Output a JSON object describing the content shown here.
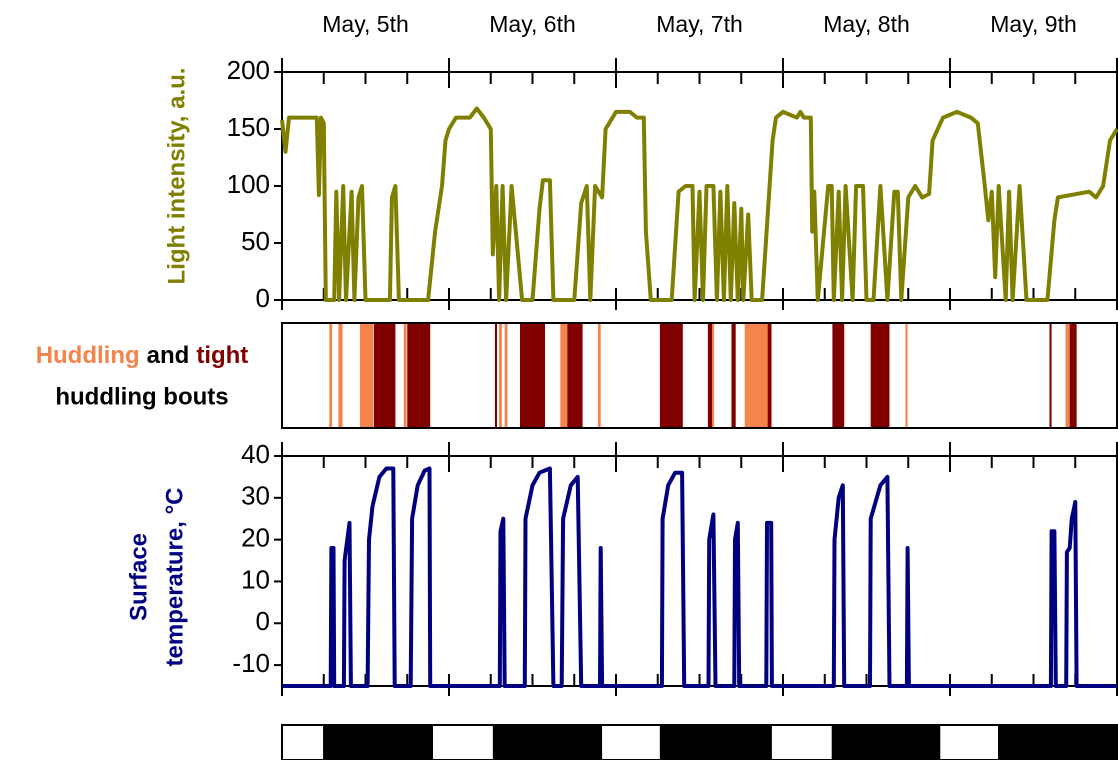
{
  "chart_data": [
    {
      "type": "line",
      "ylabel": "Light intensity, a.u.",
      "categories": [
        "May, 5th",
        "May, 6th",
        "May, 7th",
        "May, 8th",
        "May, 9th"
      ],
      "xlim": [
        0,
        120
      ],
      "xticks": [
        0,
        6,
        12,
        18,
        24,
        30,
        36,
        42,
        48,
        54,
        60,
        66,
        72,
        78,
        84,
        90,
        96,
        102,
        108,
        114,
        120
      ],
      "ylim": [
        0,
        200
      ],
      "yticks": [
        0,
        50,
        100,
        150,
        200
      ],
      "x": [
        0,
        0.5,
        1,
        5,
        5.3,
        5.6,
        6,
        6.3,
        7.5,
        7.8,
        8.2,
        8.8,
        9.2,
        10,
        10.4,
        11,
        11.5,
        12,
        15.5,
        15.8,
        16.3,
        16.8,
        21,
        22,
        23,
        23.5,
        24,
        25,
        27,
        28,
        29,
        30,
        30.3,
        30.8,
        31.2,
        31.7,
        32.2,
        33,
        34.5,
        36,
        37,
        37.5,
        38.5,
        39,
        42,
        43,
        43.8,
        44.3,
        45,
        46,
        46.5,
        48,
        50,
        51,
        52,
        52.3,
        53,
        56,
        57,
        58,
        59,
        59.3,
        60,
        60.5,
        61,
        62,
        62.5,
        63,
        63.5,
        64,
        64.5,
        65,
        65.5,
        66,
        66.3,
        67,
        67.5,
        69,
        70.5,
        71,
        72,
        74,
        74.5,
        75,
        76,
        76.2,
        76.5,
        77,
        78.5,
        79,
        79.3,
        80,
        80.5,
        81,
        82,
        82.5,
        83.5,
        84,
        85,
        86,
        87,
        88,
        88.5,
        89,
        90,
        91,
        92,
        93,
        93.5,
        95,
        97,
        99,
        100,
        101,
        101.5,
        102,
        102.5,
        103,
        104,
        104.5,
        105,
        106,
        107,
        110,
        111,
        111.5,
        116,
        117,
        118,
        119,
        120
      ],
      "series": [
        {
          "color": "#808000",
          "values": [
            158,
            130,
            160,
            160,
            92,
            160,
            155,
            0,
            0,
            95,
            0,
            100,
            0,
            95,
            0,
            90,
            100,
            0,
            0,
            90,
            100,
            0,
            0,
            60,
            100,
            140,
            150,
            160,
            160,
            168,
            160,
            150,
            40,
            100,
            0,
            100,
            0,
            100,
            0,
            0,
            80,
            105,
            105,
            0,
            0,
            85,
            100,
            0,
            100,
            90,
            150,
            165,
            165,
            160,
            160,
            60,
            0,
            0,
            95,
            100,
            100,
            0,
            95,
            0,
            100,
            100,
            0,
            95,
            0,
            100,
            0,
            85,
            0,
            80,
            0,
            75,
            0,
            0,
            140,
            160,
            165,
            160,
            165,
            160,
            160,
            60,
            95,
            0,
            100,
            100,
            0,
            95,
            0,
            100,
            0,
            100,
            100,
            0,
            0,
            100,
            0,
            95,
            95,
            0,
            90,
            100,
            90,
            93,
            140,
            160,
            165,
            160,
            155,
            100,
            70,
            95,
            20,
            100,
            0,
            95,
            0,
            100,
            0,
            0,
            70,
            90,
            95,
            90,
            100,
            140,
            150
          ]
        }
      ]
    },
    {
      "type": "interval",
      "label_parts": [
        "and",
        "huddling bouts"
      ],
      "xlim": [
        0,
        120
      ],
      "series": [
        {
          "name": "Huddling",
          "color": "#f4844c",
          "intervals": [
            [
              6.8,
              7.2
            ],
            [
              8.1,
              8.7
            ],
            [
              11.2,
              13.1
            ],
            [
              17.5,
              17.9
            ],
            [
              31.2,
              31.6
            ],
            [
              32.0,
              32.4
            ],
            [
              40.0,
              41.0
            ],
            [
              45.4,
              45.8
            ],
            [
              61.8,
              62.1
            ],
            [
              66.5,
              70.4
            ],
            [
              89.6,
              89.9
            ],
            [
              112.6,
              113.2
            ]
          ]
        },
        {
          "name": "tight",
          "color": "#800000",
          "intervals": [
            [
              13.2,
              16.3
            ],
            [
              18.0,
              21.3
            ],
            [
              30.6,
              30.9
            ],
            [
              34.2,
              37.8
            ],
            [
              41.0,
              43.2
            ],
            [
              54.3,
              57.6
            ],
            [
              61.2,
              61.8
            ],
            [
              64.6,
              65.2
            ],
            [
              69.8,
              70.3
            ],
            [
              79.1,
              80.8
            ],
            [
              84.6,
              87.3
            ],
            [
              110.3,
              110.6
            ],
            [
              113.2,
              114.2
            ]
          ]
        }
      ]
    },
    {
      "type": "line",
      "ylabel": [
        "Surface",
        "temperature, °C"
      ],
      "xlim": [
        0,
        120
      ],
      "xticks": [
        0,
        6,
        12,
        18,
        24,
        30,
        36,
        42,
        48,
        54,
        60,
        66,
        72,
        78,
        84,
        90,
        96,
        102,
        108,
        114,
        120
      ],
      "ylim": [
        -15,
        40
      ],
      "yticks": [
        -10,
        0,
        10,
        20,
        30,
        40
      ],
      "x": [
        0,
        7,
        7.1,
        7.4,
        7.5,
        8.9,
        9,
        9.7,
        9.9,
        12.3,
        12.5,
        13,
        14,
        15,
        16,
        16.2,
        18.5,
        18.7,
        19.5,
        20.5,
        21.2,
        21.3,
        31.3,
        31.4,
        31.8,
        32,
        34.9,
        35,
        36,
        37,
        38.5,
        39,
        40.2,
        40.4,
        41.5,
        42.5,
        43,
        45.7,
        45.8,
        46,
        54.6,
        54.7,
        55.5,
        56.5,
        57.5,
        57.8,
        61.3,
        61.4,
        62,
        62.3,
        65,
        65.1,
        65.5,
        65.7,
        69.6,
        69.7,
        70.3,
        70.4,
        79.3,
        79.4,
        80,
        80.6,
        80.8,
        84.5,
        84.6,
        86,
        87,
        87.3,
        89.8,
        89.9,
        90.1,
        110.5,
        110.6,
        111,
        111.2,
        112.7,
        112.8,
        113.2,
        113.5,
        114,
        114.2,
        120
      ],
      "series": [
        {
          "color": "#000080",
          "values": [
            -15,
            -15,
            18,
            18,
            -15,
            -15,
            15,
            24,
            -15,
            -15,
            20,
            28,
            35,
            37,
            37,
            -15,
            -15,
            25,
            33,
            36.5,
            37,
            -15,
            -15,
            22,
            25,
            -15,
            -15,
            25,
            33,
            36,
            37,
            -15,
            -15,
            25,
            33,
            35,
            -15,
            -15,
            18,
            -15,
            -15,
            25,
            33,
            36,
            36,
            -15,
            -15,
            20,
            26,
            -15,
            -15,
            20,
            24,
            -15,
            -15,
            24,
            24,
            -15,
            -15,
            20,
            30,
            33,
            -15,
            -15,
            25,
            33,
            35,
            -15,
            -15,
            18,
            -15,
            -15,
            22,
            22,
            -15,
            -15,
            17,
            18,
            25,
            29,
            -15,
            -15
          ]
        }
      ]
    },
    {
      "type": "interval",
      "xlim": [
        0,
        120
      ],
      "series": [
        {
          "color": "#000000",
          "intervals": [
            [
              5.9,
              21.7
            ],
            [
              30.3,
              46.0
            ],
            [
              54.3,
              70.4
            ],
            [
              79.0,
              94.6
            ],
            [
              102.9,
              120
            ]
          ]
        }
      ]
    }
  ]
}
